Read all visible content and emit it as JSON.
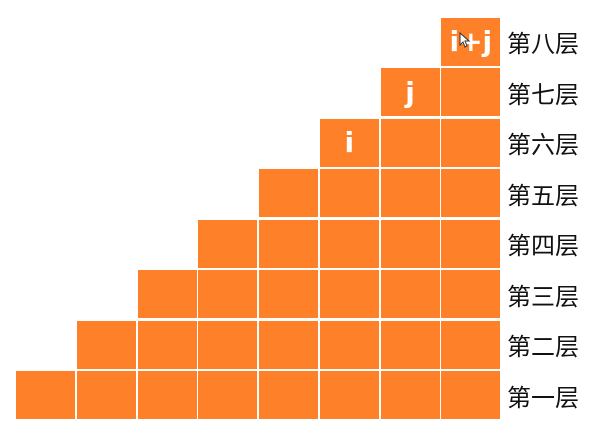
{
  "colors": {
    "block": "#fe8129",
    "label_text": "#111111",
    "marker_text": "#ffffff",
    "background": "#ffffff"
  },
  "floors": [
    {
      "label": "第一层",
      "blocks": 8
    },
    {
      "label": "第二层",
      "blocks": 7
    },
    {
      "label": "第三层",
      "blocks": 6
    },
    {
      "label": "第四层",
      "blocks": 5
    },
    {
      "label": "第五层",
      "blocks": 4
    },
    {
      "label": "第六层",
      "blocks": 3
    },
    {
      "label": "第七层",
      "blocks": 2
    },
    {
      "label": "第八层",
      "blocks": 1
    }
  ],
  "markers": [
    {
      "text": "i",
      "floor": 6,
      "block_from_right": 3
    },
    {
      "text": "j",
      "floor": 7,
      "block_from_right": 2
    },
    {
      "text": "i+j",
      "floor": 8,
      "block_from_right": 1
    }
  ]
}
